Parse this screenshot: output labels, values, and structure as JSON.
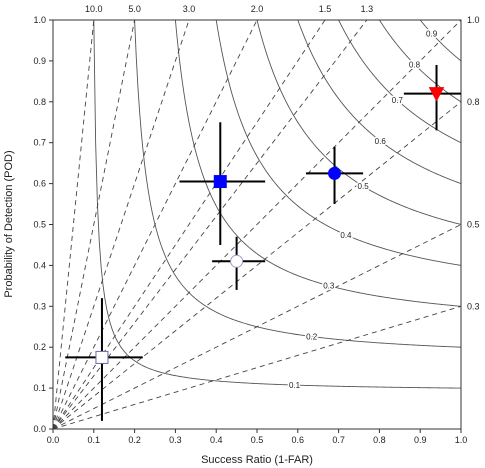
{
  "chart_data": {
    "type": "scatter",
    "title": "",
    "xlabel": "Success Ratio (1-FAR)",
    "ylabel": "Probability of Detection (POD)",
    "xlim": [
      0,
      1
    ],
    "ylim": [
      0,
      1
    ],
    "x_ticks": [
      "0.0",
      "0.1",
      "0.2",
      "0.3",
      "0.4",
      "0.5",
      "0.6",
      "0.7",
      "0.8",
      "0.9",
      "1.0"
    ],
    "y_ticks": [
      "0.0",
      "0.1",
      "0.2",
      "0.3",
      "0.4",
      "0.5",
      "0.6",
      "0.7",
      "0.8",
      "0.9",
      "1.0"
    ],
    "bias_lines": [
      {
        "value": 10.0,
        "label": "10.0"
      },
      {
        "value": 5.0,
        "label": "5.0"
      },
      {
        "value": 3.0,
        "label": "3.0"
      },
      {
        "value": 2.0,
        "label": "2.0"
      },
      {
        "value": 1.5,
        "label": "1.5"
      },
      {
        "value": 1.3,
        "label": "1.3"
      },
      {
        "value": 1.0,
        "label": "1.0"
      },
      {
        "value": 0.8,
        "label": "0.8"
      },
      {
        "value": 0.5,
        "label": "0.5"
      },
      {
        "value": 0.3,
        "label": "0.3"
      }
    ],
    "csi_lines": [
      {
        "value": 0.1,
        "label": "0.1"
      },
      {
        "value": 0.2,
        "label": "0.2"
      },
      {
        "value": 0.3,
        "label": "0.3"
      },
      {
        "value": 0.4,
        "label": "0.4"
      },
      {
        "value": 0.5,
        "label": "0.5"
      },
      {
        "value": 0.6,
        "label": "0.6"
      },
      {
        "value": 0.7,
        "label": "0.7"
      },
      {
        "value": 0.8,
        "label": "0.8"
      },
      {
        "value": 0.9,
        "label": "0.9"
      }
    ],
    "points": [
      {
        "marker": "square",
        "fill": "#ffffff",
        "stroke": "#6a6aa8",
        "x": 0.12,
        "y": 0.175,
        "x_err": [
          0.03,
          0.22
        ],
        "y_err": [
          0.02,
          0.32
        ]
      },
      {
        "marker": "circle",
        "fill": "#ffffff",
        "stroke": "#9a9ac8",
        "x": 0.45,
        "y": 0.41,
        "x_err": [
          0.39,
          0.52
        ],
        "y_err": [
          0.34,
          0.47
        ]
      },
      {
        "marker": "square",
        "fill": "#0000ff",
        "stroke": "#0000ff",
        "x": 0.41,
        "y": 0.605,
        "x_err": [
          0.31,
          0.52
        ],
        "y_err": [
          0.45,
          0.75
        ]
      },
      {
        "marker": "circle",
        "fill": "#0000ff",
        "stroke": "#0000ff",
        "x": 0.69,
        "y": 0.625,
        "x_err": [
          0.62,
          0.76
        ],
        "y_err": [
          0.55,
          0.69
        ]
      },
      {
        "marker": "triangle-down",
        "fill": "#ff0000",
        "stroke": "#ff0000",
        "x": 0.94,
        "y": 0.82,
        "x_err": [
          0.86,
          1.0
        ],
        "y_err": [
          0.73,
          0.89
        ]
      }
    ]
  }
}
